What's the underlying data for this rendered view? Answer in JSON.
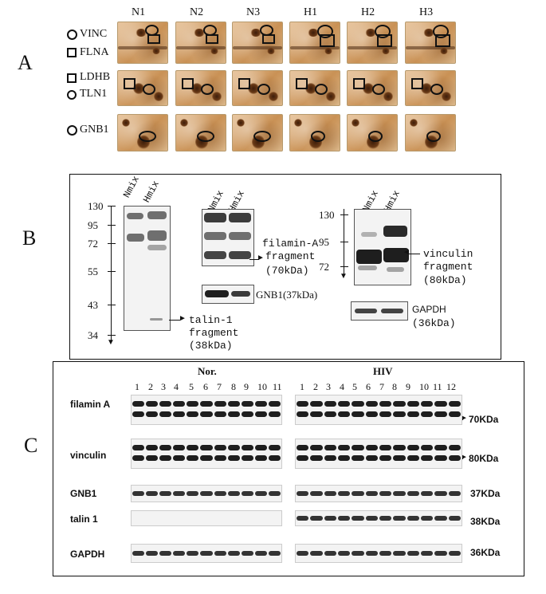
{
  "panels": {
    "a": "A",
    "b": "B",
    "c": "C"
  },
  "panel_a": {
    "columns": [
      "N1",
      "N2",
      "N3",
      "H1",
      "H2",
      "H3"
    ],
    "legend": {
      "vinc": "VINC",
      "flna": "FLNA",
      "ldhb": "LDHB",
      "tln1": "TLN1",
      "gnb1": "GNB1"
    }
  },
  "panel_b": {
    "blot1": {
      "lanes": [
        "Nmix",
        "Hmix"
      ],
      "markers": [
        "130",
        "95",
        "72",
        "55",
        "43",
        "34"
      ],
      "annotation": [
        "talin-1",
        "fragment",
        "(38kDa)"
      ]
    },
    "blot2": {
      "lanes": [
        "Nmix",
        "Hmix"
      ],
      "annotation": [
        "filamin-A",
        "fragment",
        "(70kDa)"
      ],
      "control": "GNB1(37kDa)"
    },
    "blot3": {
      "lanes": [
        "Nmix",
        "Hmix"
      ],
      "markers": [
        "130",
        "95",
        "72"
      ],
      "annotation": [
        "vinculin",
        "fragment",
        "(80kDa)"
      ],
      "control": [
        "GAPDH",
        "(36kDa)"
      ]
    }
  },
  "panel_c": {
    "groups": {
      "nor": "Nor.",
      "hiv": "HIV"
    },
    "nor_lanes": [
      "1",
      "2",
      "3",
      "4",
      "5",
      "6",
      "7",
      "8",
      "9",
      "10",
      "11"
    ],
    "hiv_lanes": [
      "1",
      "2",
      "3",
      "4",
      "5",
      "6",
      "7",
      "8",
      "9",
      "10",
      "11",
      "12"
    ],
    "rows": [
      {
        "name": "filamin A",
        "size": "70KDa"
      },
      {
        "name": "vinculin",
        "size": "80KDa"
      },
      {
        "name": "GNB1",
        "size": "37KDa"
      },
      {
        "name": "talin 1",
        "size": "38KDa"
      },
      {
        "name": "GAPDH",
        "size": "36KDa"
      }
    ]
  }
}
